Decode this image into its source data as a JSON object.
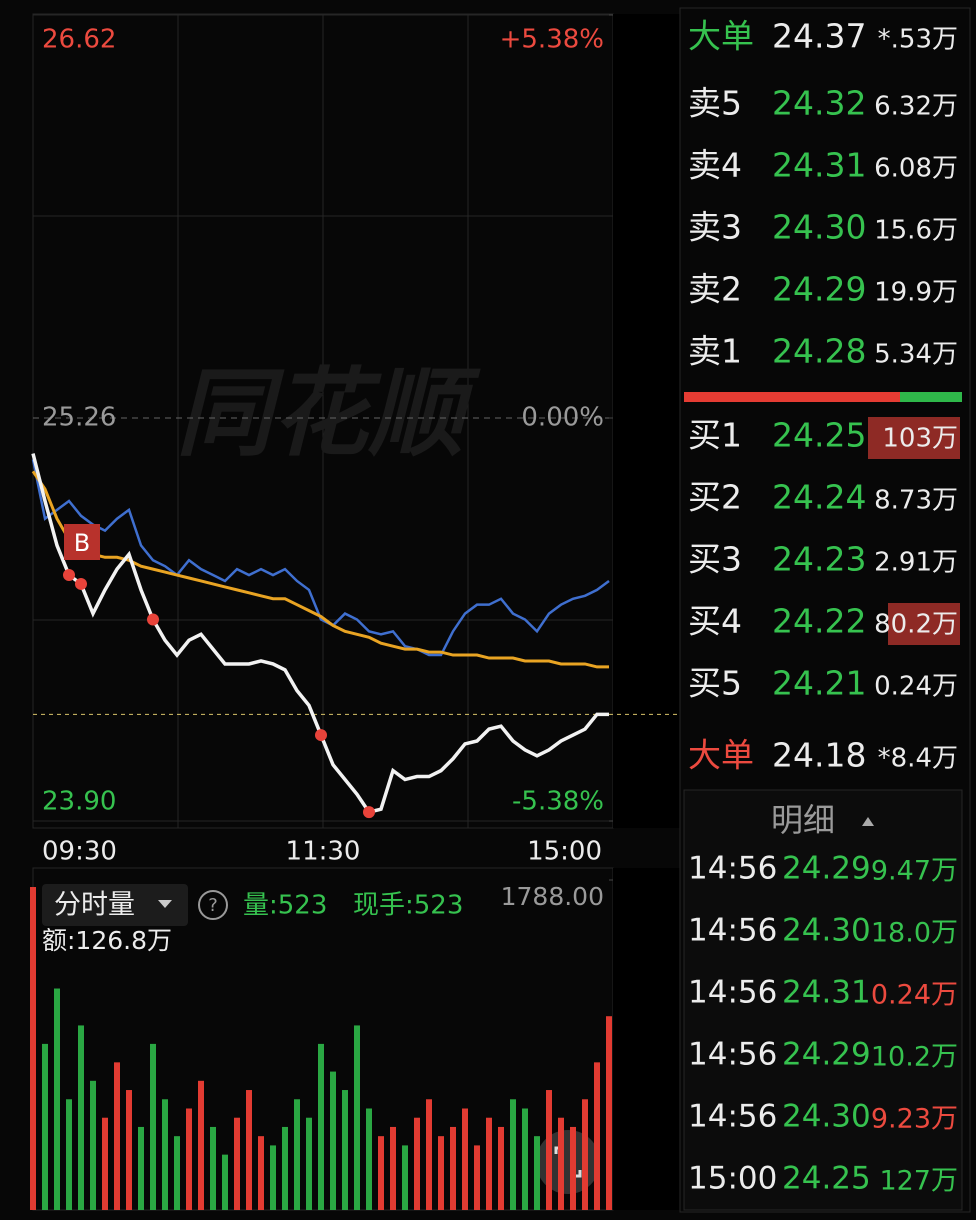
{
  "watermark": "同花顺",
  "price_chart": {
    "ylim": [
      23.9,
      26.62
    ],
    "yticks": [
      26.62,
      25.26,
      {
        "value": 23.9,
        "label": "23.90"
      }
    ],
    "y2lim": [
      -5.38,
      5.38
    ],
    "y2ticks": [
      {
        "value": 5.38,
        "label": "+5.38%"
      },
      {
        "value": 0,
        "label": "0.00%"
      },
      {
        "value": -5.38,
        "label": "-5.38%"
      }
    ],
    "time_labels": [
      "09:30",
      "11:30",
      "15:00"
    ],
    "marker": "B",
    "price": [
      25.14,
      24.98,
      24.83,
      24.73,
      24.7,
      24.6,
      24.68,
      24.75,
      24.8,
      24.68,
      24.58,
      24.51,
      24.46,
      24.51,
      24.53,
      24.48,
      24.43,
      24.43,
      24.43,
      24.44,
      24.43,
      24.41,
      24.34,
      24.29,
      24.19,
      24.09,
      24.04,
      23.99,
      23.93,
      23.94,
      24.07,
      24.04,
      24.05,
      24.05,
      24.07,
      24.11,
      24.16,
      24.17,
      24.21,
      24.22,
      24.17,
      24.14,
      24.12,
      24.14,
      24.17,
      24.19,
      24.21,
      24.26,
      24.26
    ],
    "price_color": "#f2f2f2",
    "avg_price": [
      25.08,
      25.02,
      24.92,
      24.85,
      24.82,
      24.8,
      24.79,
      24.79,
      24.78,
      24.76,
      24.75,
      24.74,
      24.73,
      24.72,
      24.71,
      24.7,
      24.69,
      24.68,
      24.67,
      24.66,
      24.65,
      24.65,
      24.63,
      24.61,
      24.59,
      24.56,
      24.54,
      24.53,
      24.52,
      24.5,
      24.49,
      24.48,
      24.48,
      24.47,
      24.47,
      24.46,
      24.46,
      24.46,
      24.45,
      24.45,
      24.45,
      24.44,
      24.44,
      24.44,
      24.43,
      24.43,
      24.43,
      24.42,
      24.42
    ],
    "avg_color": "#e9a423",
    "index_line": [
      25.12,
      24.92,
      24.95,
      24.98,
      24.93,
      24.9,
      24.88,
      24.92,
      24.95,
      24.83,
      24.78,
      24.76,
      24.73,
      24.78,
      24.75,
      24.73,
      24.71,
      24.75,
      24.73,
      24.75,
      24.73,
      24.75,
      24.71,
      24.68,
      24.58,
      24.56,
      24.6,
      24.58,
      24.54,
      24.53,
      24.54,
      24.49,
      24.48,
      24.46,
      24.46,
      24.54,
      24.6,
      24.63,
      24.63,
      24.65,
      24.6,
      24.58,
      24.54,
      24.6,
      24.63,
      24.65,
      24.66,
      24.68,
      24.71
    ],
    "index_color": "#3f6fcf"
  },
  "volume_chart": {
    "tab": "分时量",
    "help": "?",
    "volume": "量:523",
    "current": "现手:523",
    "amount": "额:126.8万",
    "ylim": [
      0,
      1788
    ],
    "yticks": [
      {
        "value": 1788,
        "label": "1788.00"
      }
    ],
    "values": [
      1750,
      900,
      1200,
      600,
      1000,
      700,
      500,
      800,
      650,
      450,
      900,
      600,
      400,
      550,
      700,
      450,
      300,
      500,
      650,
      400,
      350,
      450,
      600,
      500,
      900,
      750,
      650,
      1000,
      550,
      400,
      450,
      350,
      500,
      600,
      400,
      450,
      550,
      350,
      500,
      450,
      600,
      550,
      400,
      650,
      500,
      450,
      600,
      800,
      1050
    ]
  },
  "order_book": {
    "big_sell": {
      "label": "大单",
      "price": "24.37",
      "volume": "*.53万"
    },
    "asks": [
      {
        "label": "卖5",
        "price": "24.32",
        "volume": "6.32万"
      },
      {
        "label": "卖4",
        "price": "24.31",
        "volume": "6.08万"
      },
      {
        "label": "卖3",
        "price": "24.30",
        "volume": "15.6万"
      },
      {
        "label": "卖2",
        "price": "24.29",
        "volume": "19.9万"
      },
      {
        "label": "卖1",
        "price": "24.28",
        "volume": "5.34万"
      }
    ],
    "bids": [
      {
        "label": "买1",
        "price": "24.25",
        "volume": "103万"
      },
      {
        "label": "买2",
        "price": "24.24",
        "volume": "8.73万"
      },
      {
        "label": "买3",
        "price": "24.23",
        "volume": "2.91万"
      },
      {
        "label": "买4",
        "price": "24.22",
        "volume": "80.2万"
      },
      {
        "label": "买5",
        "price": "24.21",
        "volume": "0.24万"
      }
    ],
    "big_buy": {
      "label": "大单",
      "price": "24.18",
      "volume": "*8.4万"
    }
  },
  "details": {
    "title": "明细",
    "rows": [
      {
        "time": "14:56",
        "price": "24.29",
        "volume": "9.47万"
      },
      {
        "time": "14:56",
        "price": "24.30",
        "volume": "18.0万"
      },
      {
        "time": "14:56",
        "price": "24.31",
        "volume": "0.24万"
      },
      {
        "time": "14:56",
        "price": "24.29",
        "volume": "10.2万"
      },
      {
        "time": "14:56",
        "price": "24.30",
        "volume": "9.23万"
      },
      {
        "time": "15:00",
        "price": "24.25",
        "volume": "127万"
      }
    ]
  }
}
